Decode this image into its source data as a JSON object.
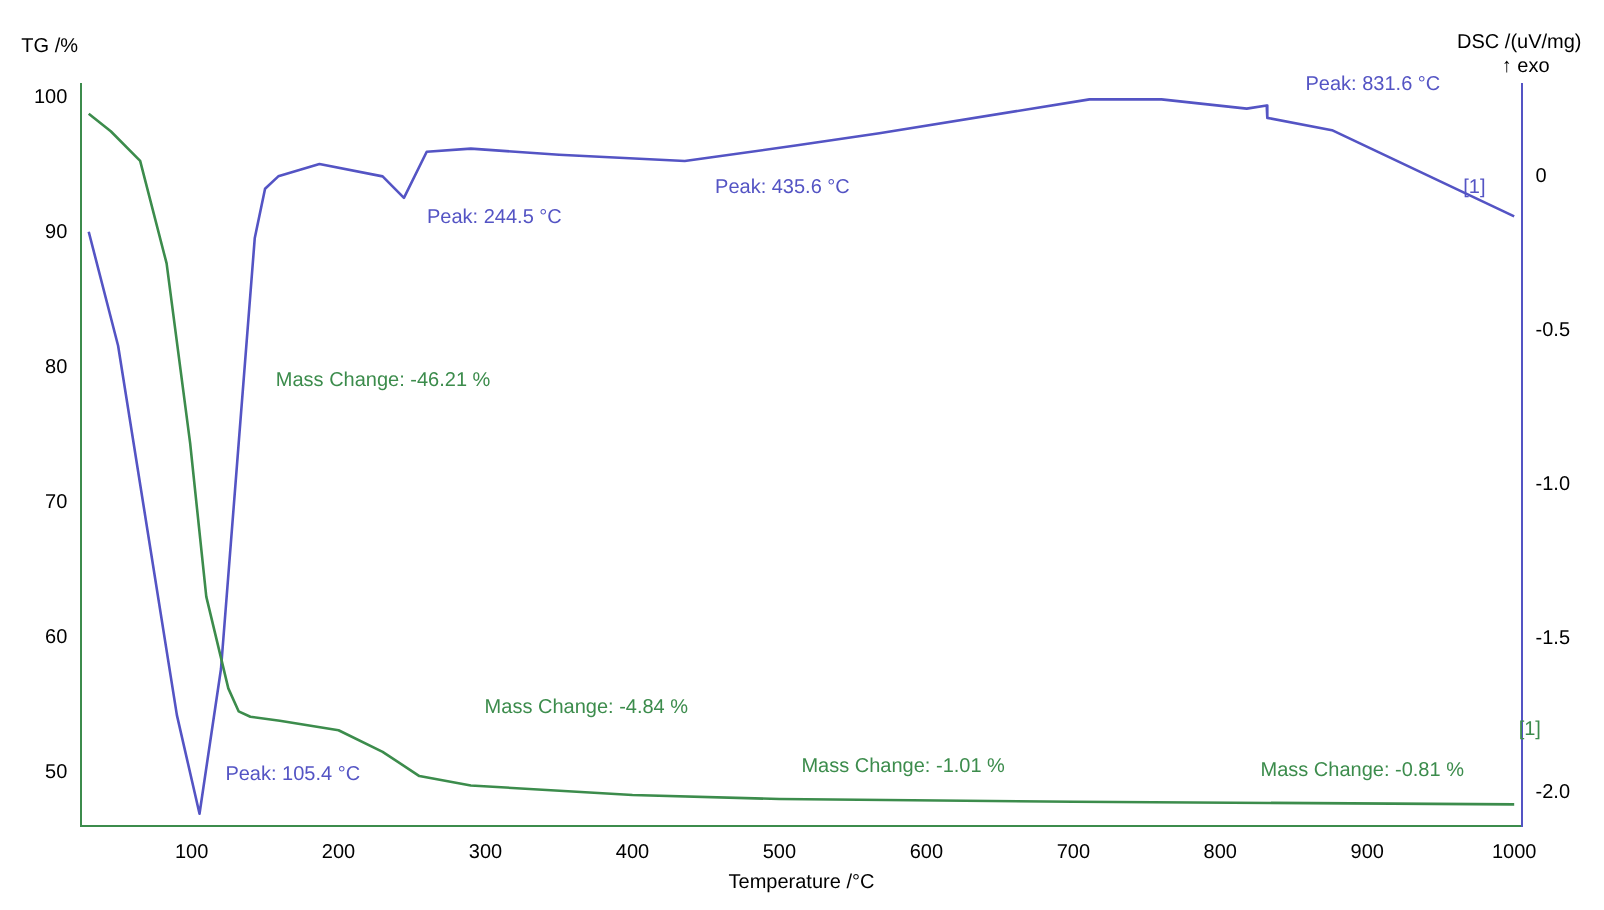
{
  "chart_data": {
    "type": "line",
    "xlabel": "Temperature /°C",
    "ylabel": "TG /%",
    "y2label": "DSC /(uV/mg)",
    "xlim": [
      25,
      1005
    ],
    "xticks": [
      100,
      200,
      300,
      400,
      500,
      600,
      700,
      800,
      900,
      1000
    ],
    "ylim": [
      46,
      101
    ],
    "yticks": [
      50,
      60,
      70,
      80,
      90,
      100
    ],
    "y2lim": [
      -2.11,
      0.3
    ],
    "y2ticks": [
      {
        "value": 0,
        "label": "0"
      },
      {
        "value": -0.5,
        "label": "-0.5"
      },
      {
        "value": -1,
        "label": "-1.0"
      },
      {
        "value": -1.5,
        "label": "-1.5"
      },
      {
        "value": -2,
        "label": "-2.0"
      }
    ],
    "grid": false,
    "legend": false,
    "marker": "none",
    "line_style": "solid",
    "series": [
      {
        "color": "#3c8c4c",
        "x": [
          30,
          45,
          65,
          83,
          99,
          110,
          125,
          132,
          140,
          160,
          200,
          230,
          255,
          290,
          400,
          500,
          700,
          1000
        ],
        "values": [
          98.8,
          97.5,
          95.3,
          87.7,
          74.4,
          63,
          56.2,
          54.5,
          54.1,
          53.8,
          53.1,
          51.5,
          49.7,
          49,
          48.3,
          48,
          47.8,
          47.6
        ]
      },
      {
        "axis": "y2",
        "color": "#5454c4",
        "x": [
          30,
          50,
          70,
          90,
          105.4,
          120,
          132,
          143,
          150,
          159,
          187,
          230,
          244.5,
          260,
          290,
          350,
          435.6,
          511,
          568,
          711,
          760,
          818,
          831.6,
          832,
          876,
          1000
        ],
        "values": [
          -0.18,
          -0.55,
          -1.15,
          -1.75,
          -2.07,
          -1.6,
          -0.87,
          -0.2,
          -0.04,
          0.0,
          0.04,
          0.0,
          -0.07,
          0.08,
          0.09,
          0.07,
          0.05,
          0.1,
          0.14,
          0.25,
          0.25,
          0.22,
          0.23,
          0.19,
          0.15,
          -0.13
        ]
      }
    ],
    "annotations": [
      "↑ exo",
      "Peak: 105.4 °C",
      "Peak: 244.5 °C",
      "Peak: 435.6 °C",
      "Peak: 831.6 °C",
      "[1]",
      "Mass Change: -46.21 %",
      "Mass Change: -4.84 %",
      "Mass Change: -1.01 %",
      "Mass Change: -0.81 %",
      "[1]"
    ]
  }
}
